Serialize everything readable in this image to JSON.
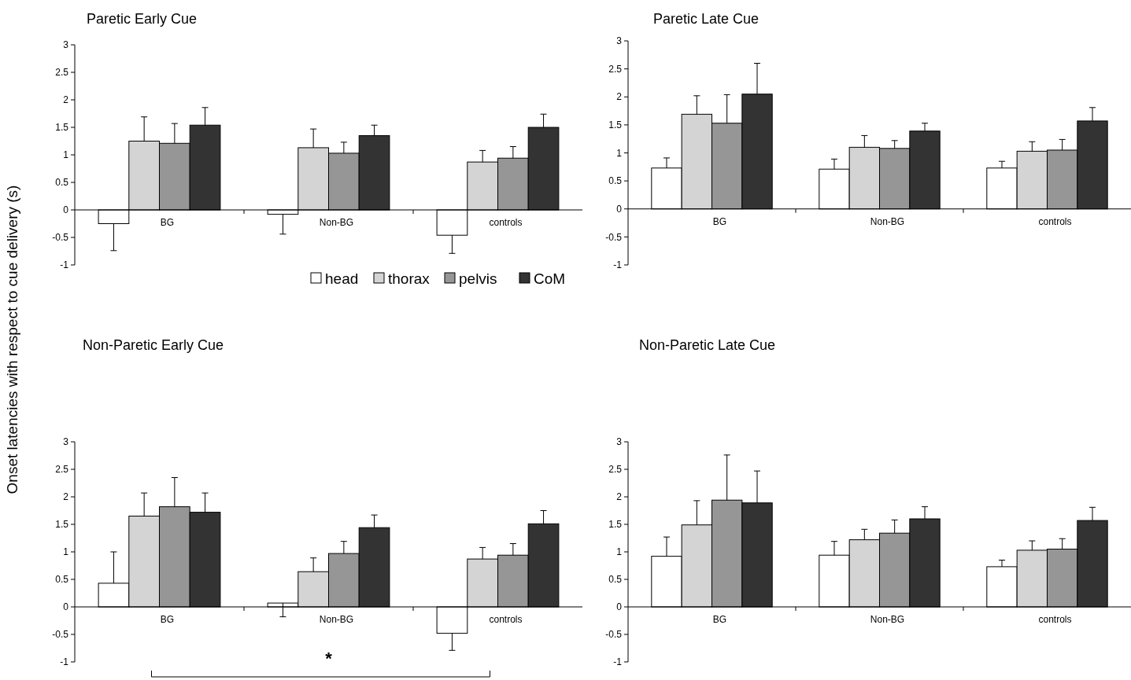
{
  "chart_data": [
    {
      "type": "bar",
      "title": "Paretic Early Cue",
      "ylabel": "Onset latencies with respect to cue delivery (s)",
      "categories": [
        "BG",
        "Non-BG",
        "controls"
      ],
      "ylim": [
        -1,
        3
      ],
      "yticks": [
        -1,
        -0.5,
        0,
        0.5,
        1,
        1.5,
        2,
        2.5,
        3
      ],
      "grid": false,
      "legend": "bottom right",
      "series": [
        {
          "name": "head",
          "color": "#ffffff",
          "values": [
            -0.25,
            -0.08,
            -0.46
          ],
          "errors": [
            [
              -0.74,
              -0.25
            ],
            [
              -0.44,
              -0.08
            ],
            [
              -0.79,
              -0.46
            ]
          ]
        },
        {
          "name": "thorax",
          "color": "#d4d4d4",
          "values": [
            1.25,
            1.13,
            0.87
          ],
          "errors": [
            [
              1.25,
              1.69
            ],
            [
              1.13,
              1.47
            ],
            [
              0.87,
              1.08
            ]
          ]
        },
        {
          "name": "pelvis",
          "color": "#969696",
          "values": [
            1.21,
            1.03,
            0.94
          ],
          "errors": [
            [
              1.21,
              1.57
            ],
            [
              1.03,
              1.23
            ],
            [
              0.94,
              1.15
            ]
          ]
        },
        {
          "name": "CoM",
          "color": "#333333",
          "values": [
            1.54,
            1.35,
            1.5
          ],
          "errors": [
            [
              1.54,
              1.86
            ],
            [
              1.35,
              1.54
            ],
            [
              1.5,
              1.74
            ]
          ]
        }
      ]
    },
    {
      "type": "bar",
      "title": "Paretic Late Cue",
      "categories": [
        "BG",
        "Non-BG",
        "controls"
      ],
      "ylim": [
        -1,
        3
      ],
      "yticks": [
        -1,
        -0.5,
        0,
        0.5,
        1,
        1.5,
        2,
        2.5,
        3
      ],
      "grid": false,
      "series": [
        {
          "color": "#ffffff",
          "values": [
            0.73,
            0.71,
            0.73
          ],
          "errors": [
            [
              0.73,
              0.91
            ],
            [
              0.71,
              0.89
            ],
            [
              0.73,
              0.85
            ]
          ]
        },
        {
          "color": "#d4d4d4",
          "values": [
            1.69,
            1.1,
            1.03
          ],
          "errors": [
            [
              1.69,
              2.02
            ],
            [
              1.1,
              1.31
            ],
            [
              1.03,
              1.2
            ]
          ]
        },
        {
          "color": "#969696",
          "values": [
            1.53,
            1.08,
            1.05
          ],
          "errors": [
            [
              1.53,
              2.04
            ],
            [
              1.08,
              1.22
            ],
            [
              1.05,
              1.24
            ]
          ]
        },
        {
          "color": "#333333",
          "values": [
            2.05,
            1.39,
            1.57
          ],
          "errors": [
            [
              2.05,
              2.6
            ],
            [
              1.39,
              1.53
            ],
            [
              1.57,
              1.81
            ]
          ]
        }
      ]
    },
    {
      "type": "bar",
      "title": "Non-Paretic Early Cue",
      "categories": [
        "BG",
        "Non-BG",
        "controls"
      ],
      "ylim": [
        -1,
        3
      ],
      "yticks": [
        -1,
        -0.5,
        0,
        0.5,
        1,
        1.5,
        2,
        2.5,
        3
      ],
      "grid": false,
      "annotations": [
        "*"
      ],
      "series": [
        {
          "color": "#ffffff",
          "values": [
            0.43,
            0.07,
            -0.48
          ],
          "errors": [
            [
              0.43,
              1.0
            ],
            [
              -0.18,
              0.07
            ],
            [
              -0.79,
              -0.48
            ]
          ]
        },
        {
          "color": "#d4d4d4",
          "values": [
            1.65,
            0.64,
            0.87
          ],
          "errors": [
            [
              1.65,
              2.07
            ],
            [
              0.64,
              0.89
            ],
            [
              0.87,
              1.08
            ]
          ]
        },
        {
          "color": "#969696",
          "values": [
            1.82,
            0.97,
            0.94
          ],
          "errors": [
            [
              1.82,
              2.35
            ],
            [
              0.97,
              1.19
            ],
            [
              0.94,
              1.15
            ]
          ]
        },
        {
          "color": "#333333",
          "values": [
            1.72,
            1.44,
            1.51
          ],
          "errors": [
            [
              1.72,
              2.07
            ],
            [
              1.44,
              1.67
            ],
            [
              1.51,
              1.75
            ]
          ]
        }
      ]
    },
    {
      "type": "bar",
      "title": "Non-Paretic Late Cue",
      "categories": [
        "BG",
        "Non-BG",
        "controls"
      ],
      "ylim": [
        -1,
        3
      ],
      "yticks": [
        -1,
        -0.5,
        0,
        0.5,
        1,
        1.5,
        2,
        2.5,
        3
      ],
      "grid": false,
      "series": [
        {
          "color": "#ffffff",
          "values": [
            0.92,
            0.94,
            0.73
          ],
          "errors": [
            [
              0.92,
              1.27
            ],
            [
              0.94,
              1.19
            ],
            [
              0.73,
              0.85
            ]
          ]
        },
        {
          "color": "#d4d4d4",
          "values": [
            1.49,
            1.22,
            1.03
          ],
          "errors": [
            [
              1.49,
              1.93
            ],
            [
              1.22,
              1.41
            ],
            [
              1.03,
              1.2
            ]
          ]
        },
        {
          "color": "#969696",
          "values": [
            1.94,
            1.34,
            1.05
          ],
          "errors": [
            [
              1.94,
              2.76
            ],
            [
              1.34,
              1.58
            ],
            [
              1.05,
              1.24
            ]
          ]
        },
        {
          "color": "#333333",
          "values": [
            1.89,
            1.6,
            1.57
          ],
          "errors": [
            [
              1.89,
              2.47
            ],
            [
              1.6,
              1.82
            ],
            [
              1.57,
              1.81
            ]
          ]
        }
      ]
    }
  ]
}
